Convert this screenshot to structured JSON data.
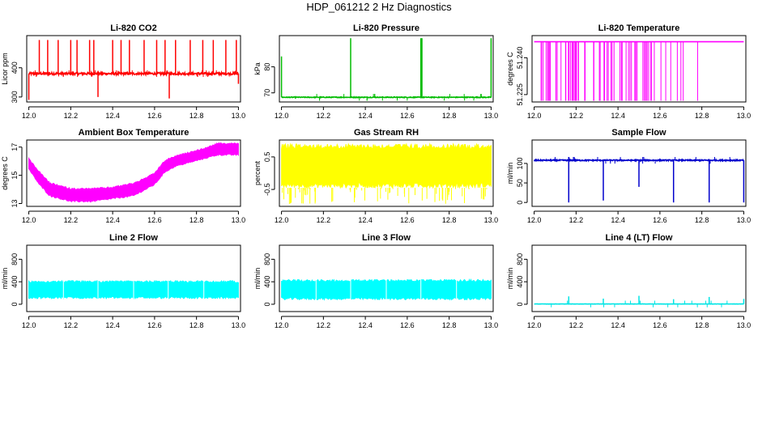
{
  "page_title": "HDP_061212  2 Hz Diagnostics",
  "chart_data": [
    {
      "type": "line",
      "title": "Li-820 CO2",
      "xlabel": "",
      "ylabel": "Licor ppm",
      "x_ticks": [
        "12.0",
        "12.2",
        "12.4",
        "12.6",
        "12.8",
        "13.0"
      ],
      "y_ticks": [
        "300",
        "400"
      ],
      "y_tick_values": [
        300,
        400
      ],
      "xlim": [
        11.99,
        13.01
      ],
      "ylim": [
        283,
        510
      ],
      "series": [
        {
          "color": "#ff0000",
          "baseline": 380,
          "noise": 4,
          "spikes": [
            [
              12.0,
              290
            ],
            [
              12.05,
              495
            ],
            [
              12.09,
              495
            ],
            [
              12.14,
              495
            ],
            [
              12.2,
              495
            ],
            [
              12.23,
              495
            ],
            [
              12.29,
              495
            ],
            [
              12.31,
              495
            ],
            [
              12.33,
              300
            ],
            [
              12.4,
              495
            ],
            [
              12.44,
              495
            ],
            [
              12.48,
              495
            ],
            [
              12.55,
              495
            ],
            [
              12.61,
              495
            ],
            [
              12.65,
              495
            ],
            [
              12.67,
              295
            ],
            [
              12.7,
              495
            ],
            [
              12.77,
              495
            ],
            [
              12.83,
              495
            ],
            [
              12.88,
              495
            ],
            [
              12.94,
              495
            ],
            [
              12.99,
              495
            ],
            [
              13.0,
              345
            ]
          ]
        }
      ]
    },
    {
      "type": "line",
      "title": "Li-820 Pressure",
      "xlabel": "",
      "ylabel": "kPa",
      "x_ticks": [
        "12.0",
        "12.2",
        "12.4",
        "12.6",
        "12.8",
        "13.0"
      ],
      "y_ticks": [
        "70",
        "80"
      ],
      "y_tick_values": [
        70,
        80
      ],
      "xlim": [
        11.99,
        13.01
      ],
      "ylim": [
        66.5,
        92
      ],
      "series": [
        {
          "color": "#00bb00",
          "baseline": 68.3,
          "noise": 0.15,
          "spikes": [
            [
              12.0,
              84
            ],
            [
              12.33,
              91
            ],
            [
              12.665,
              91
            ],
            [
              12.67,
              91
            ],
            [
              13.0,
              91
            ]
          ]
        }
      ]
    },
    {
      "type": "line",
      "title": "Li-820 Temperature",
      "xlabel": "",
      "ylabel": "degrees C",
      "x_ticks": [
        "12.0",
        "12.2",
        "12.4",
        "12.6",
        "12.8",
        "13.0"
      ],
      "y_ticks": [
        "51.225",
        "51.240"
      ],
      "y_tick_values": [
        51.225,
        51.24
      ],
      "xlim": [
        11.99,
        13.01
      ],
      "ylim": [
        51.222,
        51.249
      ],
      "series": [
        {
          "color": "#ff00ff",
          "baseline": 51.2465,
          "low": 51.2225
        }
      ]
    },
    {
      "type": "area",
      "title": "Ambient Box Temperature",
      "xlabel": "",
      "ylabel": "degrees C",
      "x_ticks": [
        "12.0",
        "12.2",
        "12.4",
        "12.6",
        "12.8",
        "13.0"
      ],
      "y_ticks": [
        "13",
        "15",
        "17"
      ],
      "y_tick_values": [
        13,
        15,
        17
      ],
      "xlim": [
        11.99,
        13.01
      ],
      "ylim": [
        12.8,
        17.5
      ],
      "series": [
        {
          "color": "#ff00ff",
          "upper": [
            [
              12.0,
              16.2
            ],
            [
              12.05,
              15.3
            ],
            [
              12.1,
              14.5
            ],
            [
              12.2,
              14.1
            ],
            [
              12.3,
              14.1
            ],
            [
              12.4,
              14.2
            ],
            [
              12.5,
              14.5
            ],
            [
              12.55,
              14.8
            ],
            [
              12.6,
              15.2
            ],
            [
              12.65,
              16.1
            ],
            [
              12.7,
              16.4
            ],
            [
              12.8,
              16.8
            ],
            [
              12.85,
              17.0
            ],
            [
              12.9,
              17.3
            ],
            [
              13.0,
              17.3
            ]
          ],
          "lower": [
            [
              12.0,
              15.4
            ],
            [
              12.05,
              14.3
            ],
            [
              12.1,
              13.5
            ],
            [
              12.2,
              13.1
            ],
            [
              12.3,
              13.1
            ],
            [
              12.4,
              13.3
            ],
            [
              12.5,
              13.5
            ],
            [
              12.55,
              13.9
            ],
            [
              12.6,
              14.3
            ],
            [
              12.65,
              15.2
            ],
            [
              12.7,
              15.6
            ],
            [
              12.8,
              16.0
            ],
            [
              12.85,
              16.2
            ],
            [
              12.9,
              16.4
            ],
            [
              13.0,
              16.4
            ]
          ]
        }
      ]
    },
    {
      "type": "area",
      "title": "Gas Stream RH",
      "xlabel": "",
      "ylabel": "percent",
      "x_ticks": [
        "12.0",
        "12.2",
        "12.4",
        "12.6",
        "12.8",
        "13.0"
      ],
      "y_ticks": [
        "-0.5",
        "0.5"
      ],
      "y_tick_values": [
        -0.5,
        0.5
      ],
      "xlim": [
        11.99,
        13.01
      ],
      "ylim": [
        -1.02,
        1.02
      ],
      "series": [
        {
          "color": "#ffff00",
          "upper": [
            [
              12.0,
              0.9
            ],
            [
              13.0,
              0.9
            ]
          ],
          "lower": [
            [
              12.0,
              -0.45
            ],
            [
              13.0,
              -0.45
            ]
          ],
          "whisker_low": -0.95
        }
      ]
    },
    {
      "type": "line",
      "title": "Sample Flow",
      "xlabel": "",
      "ylabel": "ml/min",
      "x_ticks": [
        "12.0",
        "12.2",
        "12.4",
        "12.6",
        "12.8",
        "13.0"
      ],
      "y_ticks": [
        "0",
        "50",
        "100"
      ],
      "y_tick_values": [
        0,
        50,
        100
      ],
      "xlim": [
        11.99,
        13.01
      ],
      "ylim": [
        -10,
        160
      ],
      "series": [
        {
          "color": "#0000cc",
          "baseline": 108,
          "noise": 1.5,
          "spikes": [
            [
              12.165,
              0
            ],
            [
              12.33,
              5
            ],
            [
              12.5,
              40
            ],
            [
              12.665,
              0
            ],
            [
              12.835,
              0
            ],
            [
              13.0,
              0
            ]
          ]
        }
      ]
    },
    {
      "type": "area",
      "title": "Line 2 Flow",
      "xlabel": "",
      "ylabel": "ml/min",
      "x_ticks": [
        "12.0",
        "12.2",
        "12.4",
        "12.6",
        "12.8",
        "13.0"
      ],
      "y_ticks": [
        "0",
        "400",
        "800"
      ],
      "y_tick_values": [
        0,
        400,
        800
      ],
      "xlim": [
        11.99,
        13.01
      ],
      "ylim": [
        -130,
        1050
      ],
      "series": [
        {
          "color": "#00ffff",
          "upper": [
            [
              12.0,
              420
            ],
            [
              13.0,
              420
            ]
          ],
          "lower": [
            [
              12.0,
              100
            ],
            [
              13.0,
              100
            ]
          ],
          "gaps": [
            12.165,
            12.33,
            12.5,
            12.665,
            12.835
          ]
        }
      ]
    },
    {
      "type": "area",
      "title": "Line 3 Flow",
      "xlabel": "",
      "ylabel": "ml/min",
      "x_ticks": [
        "12.0",
        "12.2",
        "12.4",
        "12.6",
        "12.8",
        "13.0"
      ],
      "y_ticks": [
        "0",
        "400",
        "800"
      ],
      "y_tick_values": [
        0,
        400,
        800
      ],
      "xlim": [
        11.99,
        13.01
      ],
      "ylim": [
        -130,
        1050
      ],
      "series": [
        {
          "color": "#00ffff",
          "upper": [
            [
              12.0,
              440
            ],
            [
              13.0,
              440
            ]
          ],
          "lower": [
            [
              12.0,
              80
            ],
            [
              13.0,
              80
            ]
          ],
          "gaps": [
            12.165,
            12.33,
            12.5,
            12.665,
            12.835
          ]
        }
      ]
    },
    {
      "type": "line",
      "title": "Line 4 (LT) Flow",
      "xlabel": "",
      "ylabel": "ml/min",
      "x_ticks": [
        "12.0",
        "12.2",
        "12.4",
        "12.6",
        "12.8",
        "13.0"
      ],
      "y_ticks": [
        "0",
        "400",
        "800"
      ],
      "y_tick_values": [
        0,
        400,
        800
      ],
      "xlim": [
        11.99,
        13.01
      ],
      "ylim": [
        -130,
        1050
      ],
      "series": [
        {
          "color": "#00e5e5",
          "baseline": 5,
          "noise": 2,
          "spikes": [
            [
              12.165,
              140
            ],
            [
              12.33,
              100
            ],
            [
              12.5,
              150
            ],
            [
              12.665,
              90
            ],
            [
              12.835,
              130
            ],
            [
              13.0,
              95
            ]
          ]
        }
      ]
    }
  ]
}
